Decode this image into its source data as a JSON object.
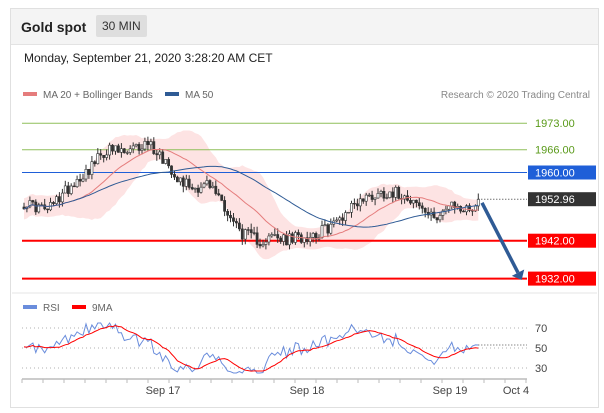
{
  "header": {
    "title": "Gold spot",
    "timeframe": "30 MIN",
    "datetime": "Monday, September 21, 2020 3:28:20 AM CET"
  },
  "colors": {
    "candle": "#333333",
    "bollinger_fill": "#fde3e3",
    "ma20": "#e57c7c",
    "ma50": "#2f5b95",
    "resistance": "#8fbf5a",
    "resistance_label": "#5a9a1a",
    "pivot": "#1f5fd8",
    "support": "#ff0000",
    "arrow": "#2f5b95",
    "rsi": "#6a8ddc",
    "rsi_ma": "#ff0000"
  },
  "chart_data": [
    {
      "type": "candlestick",
      "legend": [
        "MA 20 + Bollinger Bands",
        "MA 50"
      ],
      "attribution": "Research © 2020 Trading Central",
      "ylim": [
        1929,
        1977
      ],
      "last_price": 1952.96,
      "current_label": "1952.96",
      "levels": [
        {
          "value": 1973.0,
          "label": "1973.00",
          "kind": "resistance"
        },
        {
          "value": 1966.0,
          "label": "1966.00",
          "kind": "resistance"
        },
        {
          "value": 1960.0,
          "label": "1960.00",
          "kind": "pivot"
        },
        {
          "value": 1942.0,
          "label": "1942.00",
          "kind": "support"
        },
        {
          "value": 1932.0,
          "label": "1932.00",
          "kind": "support"
        }
      ],
      "x_labels": [
        "Sep 17",
        "Sep 18",
        "Sep 19",
        "Oct 4"
      ],
      "projection": {
        "from": 1952.0,
        "to": 1932.5
      }
    },
    {
      "type": "line",
      "legend": [
        "RSI",
        "9MA"
      ],
      "ylim": [
        20,
        80
      ],
      "y_ticks": [
        70,
        50,
        30
      ],
      "rsi_end": 53,
      "ma_end": 50
    }
  ]
}
